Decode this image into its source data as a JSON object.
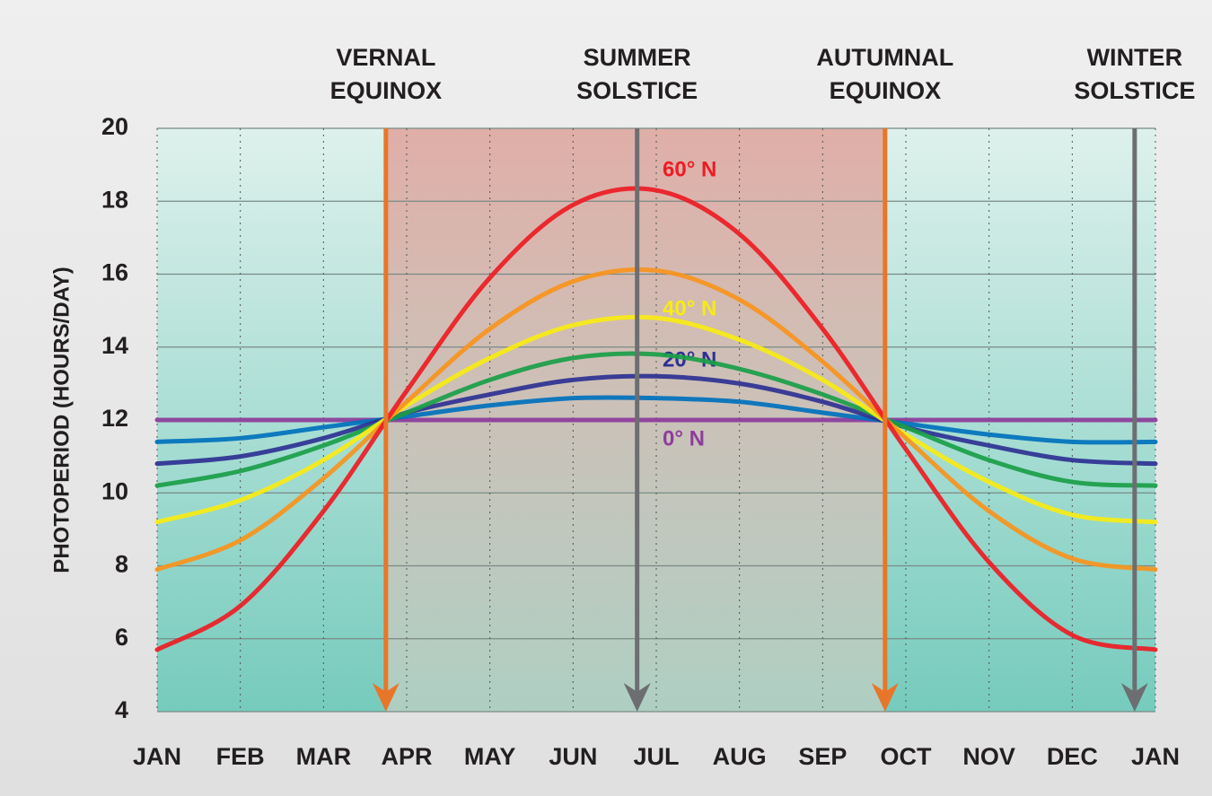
{
  "chart_data": {
    "type": "line",
    "y_label": "PHOTOPERIOD (HOURS/DAY)",
    "x": [
      0,
      1,
      2,
      3,
      4,
      5,
      6,
      7,
      8,
      9,
      10,
      11,
      12
    ],
    "xlim": [
      0,
      12
    ],
    "xticks": [
      {
        "value": 0,
        "label": "JAN"
      },
      {
        "value": 1,
        "label": "FEB"
      },
      {
        "value": 2,
        "label": "MAR"
      },
      {
        "value": 3,
        "label": "APR"
      },
      {
        "value": 4,
        "label": "MAY"
      },
      {
        "value": 5,
        "label": "JUN"
      },
      {
        "value": 6,
        "label": "JUL"
      },
      {
        "value": 7,
        "label": "AUG"
      },
      {
        "value": 8,
        "label": "SEP"
      },
      {
        "value": 9,
        "label": "OCT"
      },
      {
        "value": 10,
        "label": "NOV"
      },
      {
        "value": 11,
        "label": "DEC"
      },
      {
        "value": 12,
        "label": "JAN"
      }
    ],
    "ylim": [
      4,
      20
    ],
    "yticks": [
      4,
      6,
      8,
      10,
      12,
      14,
      16,
      18,
      20
    ],
    "grid": true,
    "series": [
      {
        "name": "0° N",
        "color": "#8e3d9c",
        "values": [
          12,
          12,
          12,
          12,
          12,
          12,
          12,
          12,
          12,
          12,
          12,
          12,
          12
        ]
      },
      {
        "color": "#0071bc",
        "values": [
          11.4,
          11.5,
          11.8,
          12.1,
          12.4,
          12.6,
          12.6,
          12.5,
          12.2,
          11.9,
          11.6,
          11.4,
          11.4
        ]
      },
      {
        "name": "20° N",
        "color": "#2e3192",
        "values": [
          10.8,
          11.0,
          11.5,
          12.2,
          12.7,
          13.1,
          13.2,
          13.0,
          12.5,
          11.8,
          11.3,
          10.9,
          10.8
        ]
      },
      {
        "color": "#1a9e48",
        "values": [
          10.2,
          10.6,
          11.3,
          12.2,
          13.1,
          13.7,
          13.8,
          13.4,
          12.7,
          11.8,
          10.9,
          10.3,
          10.2
        ]
      },
      {
        "name": "40° N",
        "color": "#f7ec13",
        "values": [
          9.2,
          9.8,
          10.9,
          12.4,
          13.7,
          14.6,
          14.8,
          14.2,
          13.1,
          11.6,
          10.3,
          9.4,
          9.2
        ]
      },
      {
        "color": "#f7941d",
        "values": [
          7.9,
          8.7,
          10.4,
          12.5,
          14.5,
          15.8,
          16.1,
          15.3,
          13.6,
          11.5,
          9.5,
          8.2,
          7.9
        ]
      },
      {
        "name": "60° N",
        "color": "#ed1c24",
        "values": [
          5.7,
          6.9,
          9.5,
          12.8,
          15.9,
          17.9,
          18.3,
          17.1,
          14.5,
          11.2,
          8.1,
          6.1,
          5.7
        ]
      }
    ],
    "events": [
      {
        "label": [
          "VERNAL",
          "EQUINOX"
        ],
        "x": 2.75,
        "color": "#e8762a"
      },
      {
        "label": [
          "SUMMER",
          "SOLSTICE"
        ],
        "x": 5.77,
        "color": "#6d6e71"
      },
      {
        "label": [
          "AUTUMNAL",
          "EQUINOX"
        ],
        "x": 8.75,
        "color": "#e8762a"
      },
      {
        "label": [
          "WINTER",
          "SOLSTICE"
        ],
        "x": 11.75,
        "color": "#6d6e71"
      }
    ]
  }
}
